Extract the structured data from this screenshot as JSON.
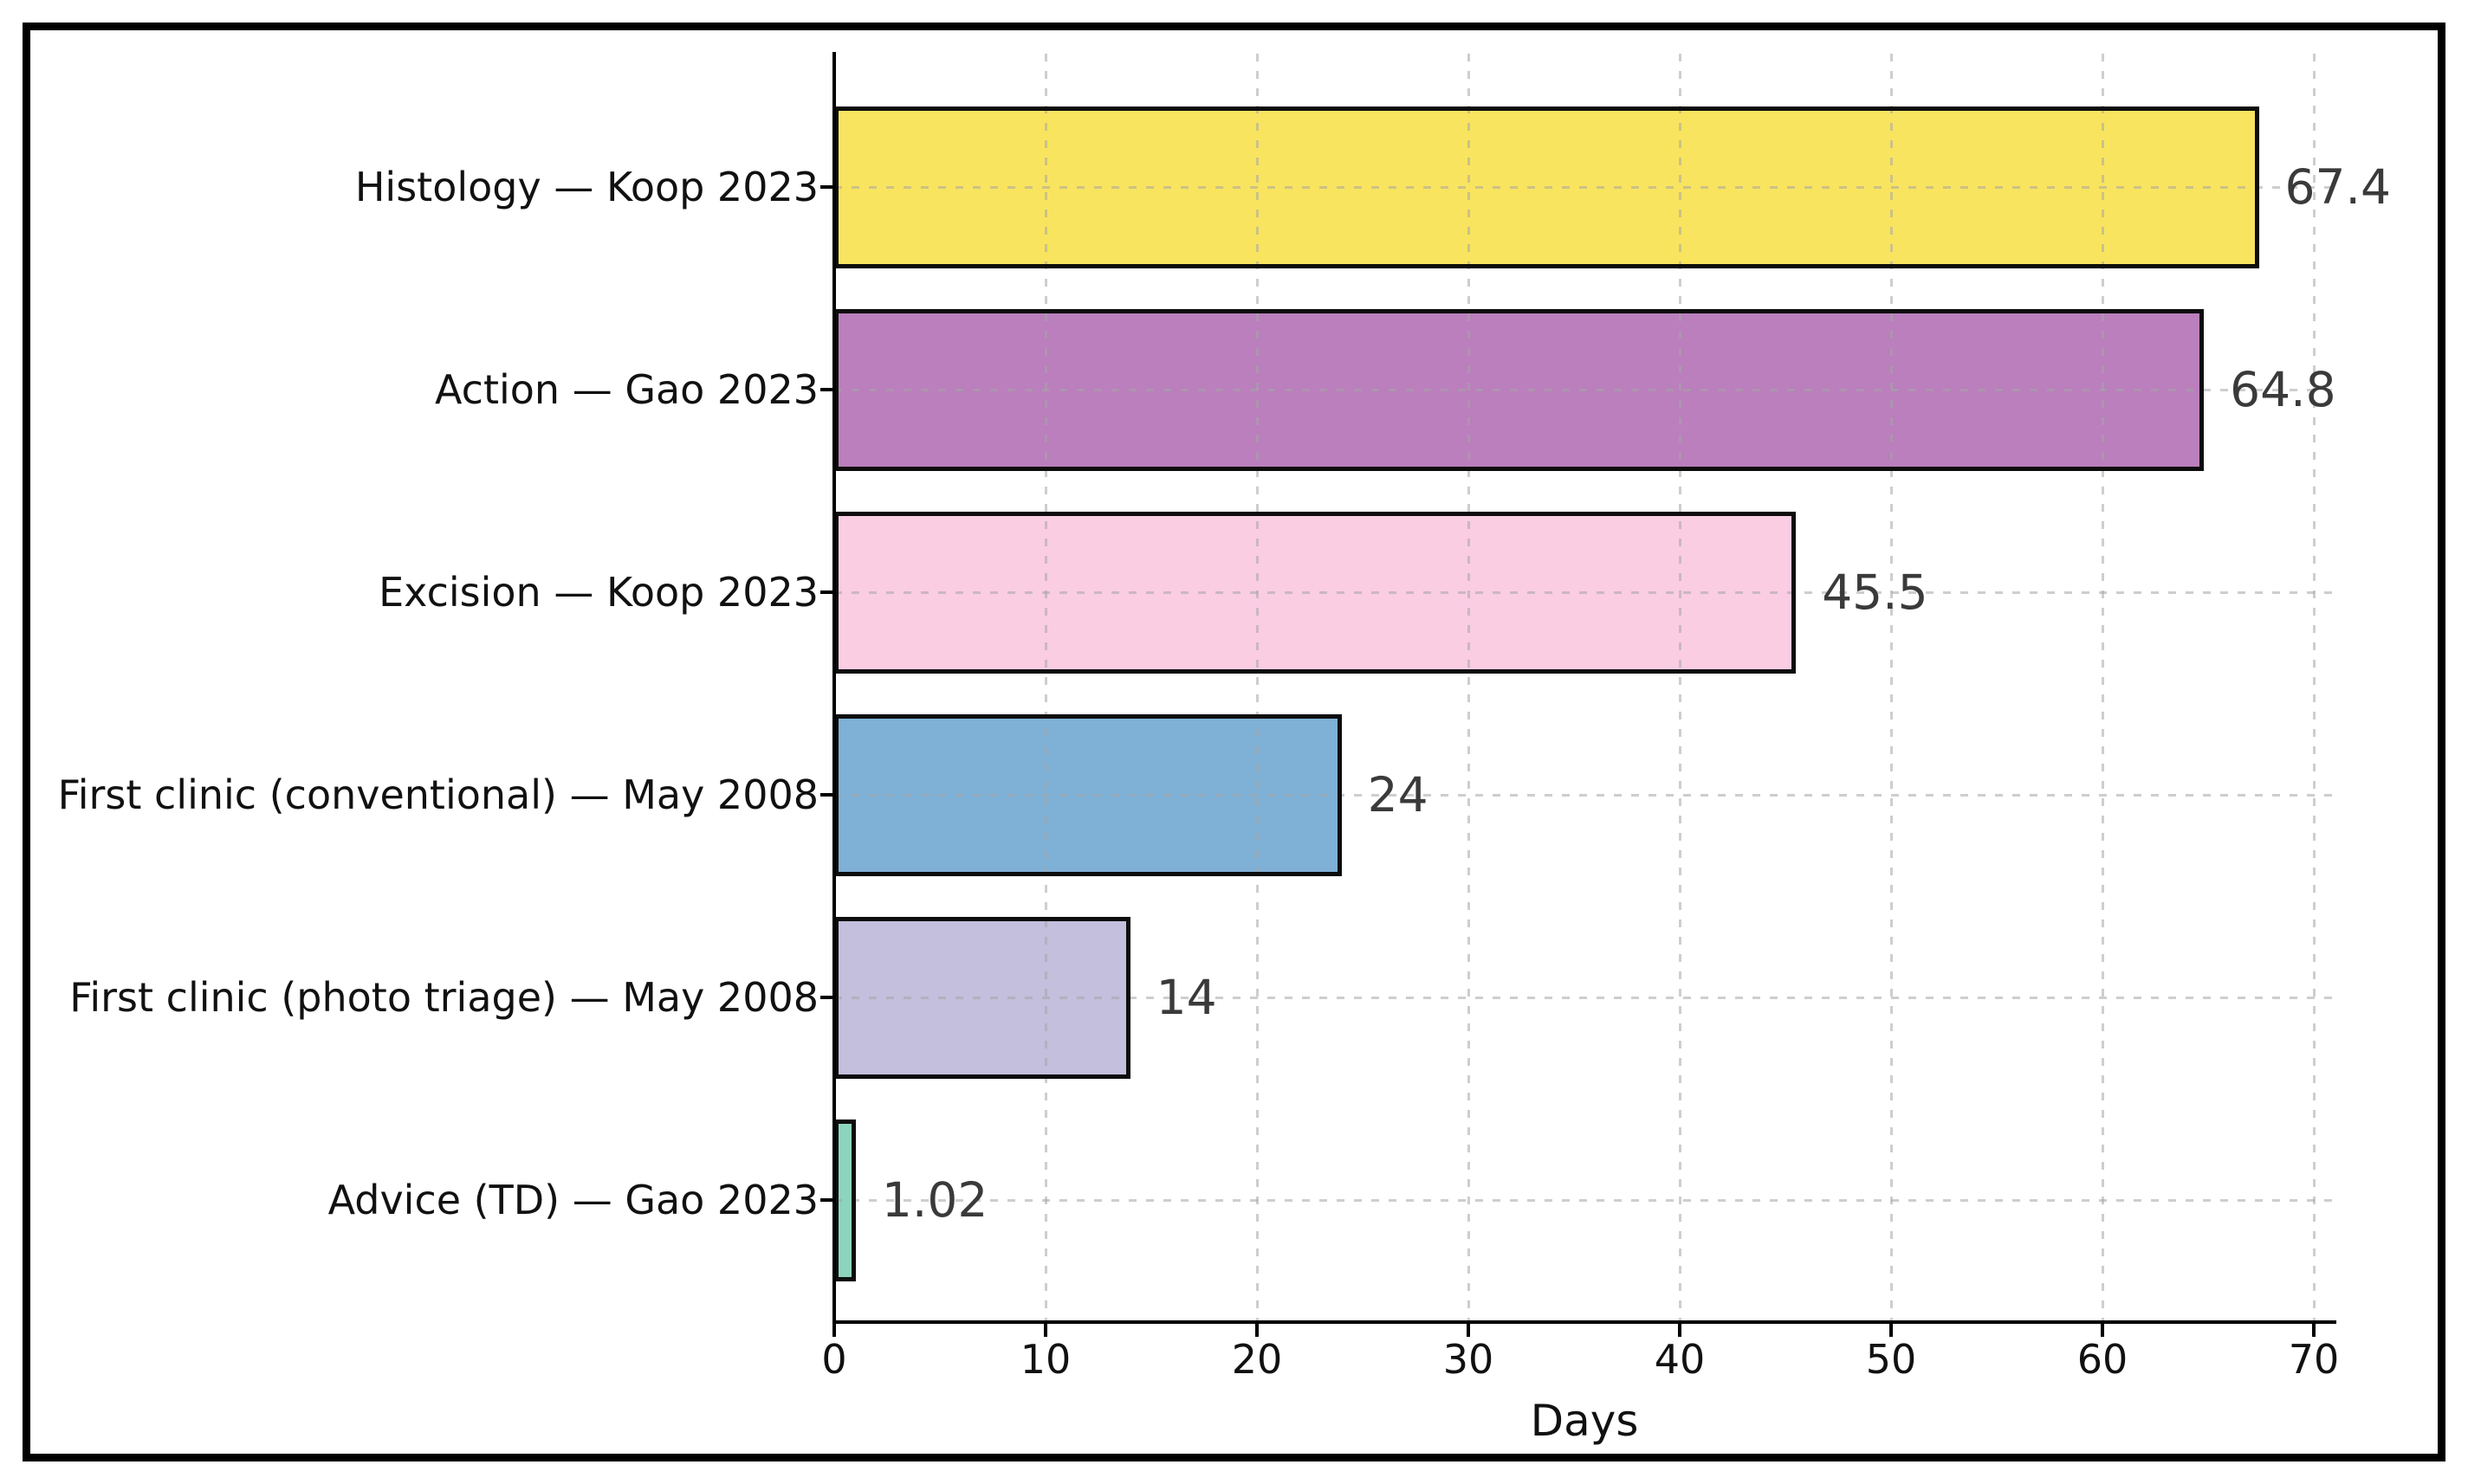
{
  "figure": {
    "background_color": "#ffffff",
    "border_color": "#000000"
  },
  "chart_data": {
    "type": "bar",
    "orientation": "horizontal",
    "title": "",
    "xlabel": "Days",
    "ylabel": "",
    "categories": [
      "Histology — Koop 2023",
      "Action — Gao 2023",
      "Excision — Koop 2023",
      "First clinic (conventional) — May 2008",
      "First clinic (photo triage) — May 2008",
      "Advice (TD) — Gao 2023"
    ],
    "values": [
      67.4,
      64.8,
      45.5,
      24,
      14,
      1.02
    ],
    "value_labels": [
      "67.4",
      "64.8",
      "45.5",
      "24",
      "14",
      "1.02"
    ],
    "bar_colors": [
      "#F9E45F",
      "#BA7FBC",
      "#FACDE3",
      "#7FB0D5",
      "#C3BFDC",
      "#8DD4BE"
    ],
    "bar_edge_color": "#0d0d0d",
    "value_label_color": "#3a3a3a",
    "tick_label_color": "#111111",
    "x_ticks": [
      0,
      10,
      20,
      30,
      40,
      50,
      60,
      70
    ],
    "x_tick_labels": [
      "0",
      "10",
      "20",
      "30",
      "40",
      "50",
      "60",
      "70"
    ],
    "xlim": [
      0,
      71.1
    ],
    "grid": "dashed",
    "grid_color": "#a5a5a5",
    "legend": "none"
  }
}
